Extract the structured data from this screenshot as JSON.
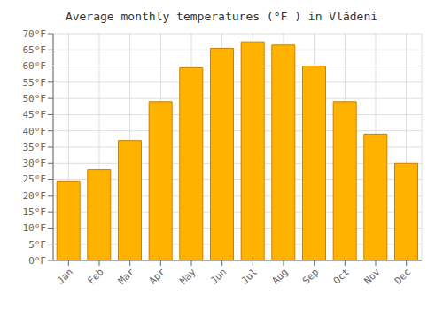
{
  "chart_data": {
    "type": "bar",
    "title": "Average monthly temperatures (°F ) in Vlădeni",
    "categories": [
      "Jan",
      "Feb",
      "Mar",
      "Apr",
      "May",
      "Jun",
      "Jul",
      "Aug",
      "Sep",
      "Oct",
      "Nov",
      "Dec"
    ],
    "values": [
      24.5,
      28.0,
      37.0,
      49.0,
      59.5,
      65.5,
      67.5,
      66.5,
      60.0,
      49.0,
      39.0,
      30.0
    ],
    "color": "#FFB300",
    "ylim": [
      0,
      70
    ],
    "yticks": [
      {
        "value": 0,
        "label": "0°F"
      },
      {
        "value": 5,
        "label": "5°F"
      },
      {
        "value": 10,
        "label": "10°F"
      },
      {
        "value": 15,
        "label": "15°F"
      },
      {
        "value": 20,
        "label": "20°F"
      },
      {
        "value": 25,
        "label": "25°F"
      },
      {
        "value": 30,
        "label": "30°F"
      },
      {
        "value": 35,
        "label": "35°F"
      },
      {
        "value": 40,
        "label": "40°F"
      },
      {
        "value": 45,
        "label": "45°F"
      },
      {
        "value": 50,
        "label": "50°F"
      },
      {
        "value": 55,
        "label": "55°F"
      },
      {
        "value": 60,
        "label": "60°F"
      },
      {
        "value": 65,
        "label": "65°F"
      },
      {
        "value": 70,
        "label": "70°F"
      }
    ],
    "grid": true
  }
}
